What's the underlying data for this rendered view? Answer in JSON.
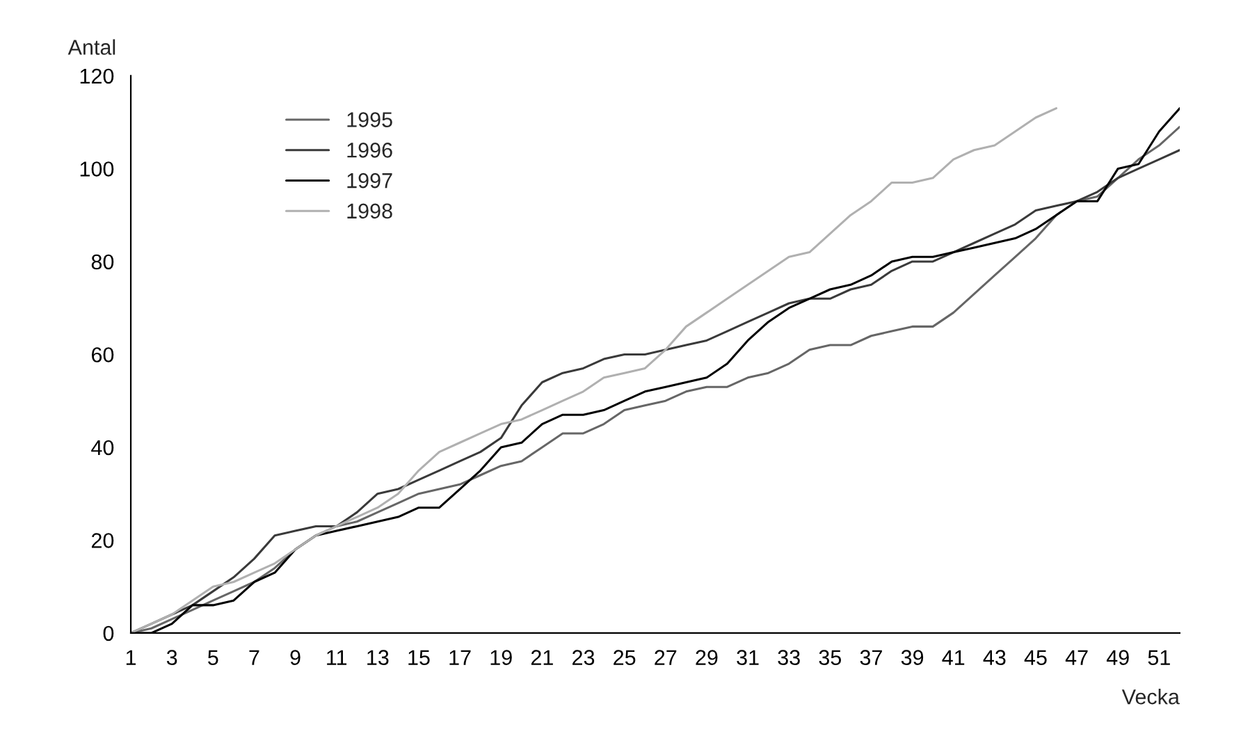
{
  "chart_data": {
    "type": "line",
    "xlabel": "Vecka",
    "ylabel": "Antal",
    "x": [
      1,
      2,
      3,
      4,
      5,
      6,
      7,
      8,
      9,
      10,
      11,
      12,
      13,
      14,
      15,
      16,
      17,
      18,
      19,
      20,
      21,
      22,
      23,
      24,
      25,
      26,
      27,
      28,
      29,
      30,
      31,
      32,
      33,
      34,
      35,
      36,
      37,
      38,
      39,
      40,
      41,
      42,
      43,
      44,
      45,
      46,
      47,
      48,
      49,
      50,
      51,
      52
    ],
    "series": [
      {
        "name": "1995",
        "color": "#666666",
        "values": [
          0,
          1,
          3,
          5,
          7,
          9,
          11,
          14,
          18,
          21,
          23,
          24,
          26,
          28,
          30,
          31,
          32,
          34,
          36,
          37,
          40,
          43,
          43,
          45,
          48,
          49,
          50,
          52,
          53,
          53,
          55,
          56,
          58,
          61,
          62,
          62,
          64,
          65,
          66,
          66,
          69,
          73,
          77,
          81,
          85,
          90,
          93,
          94,
          98,
          102,
          105,
          109
        ]
      },
      {
        "name": "1996",
        "color": "#3a3a3a",
        "values": [
          0,
          2,
          4,
          6,
          9,
          12,
          16,
          21,
          22,
          23,
          23,
          26,
          30,
          31,
          33,
          35,
          37,
          39,
          42,
          49,
          54,
          56,
          57,
          59,
          60,
          60,
          61,
          62,
          63,
          65,
          67,
          69,
          71,
          72,
          72,
          74,
          75,
          78,
          80,
          80,
          82,
          84,
          86,
          88,
          91,
          92,
          93,
          95,
          98,
          100,
          102,
          104
        ]
      },
      {
        "name": "1997",
        "color": "#000000",
        "values": [
          0,
          0,
          2,
          6,
          6,
          7,
          11,
          13,
          18,
          21,
          22,
          23,
          24,
          25,
          27,
          27,
          31,
          35,
          40,
          41,
          45,
          47,
          47,
          48,
          50,
          52,
          53,
          54,
          55,
          58,
          63,
          67,
          70,
          72,
          74,
          75,
          77,
          80,
          81,
          81,
          82,
          83,
          84,
          85,
          87,
          90,
          93,
          93,
          100,
          101,
          108,
          113
        ]
      },
      {
        "name": "1998",
        "color": "#b0b0b0",
        "values": [
          0,
          2,
          4,
          7,
          10,
          11,
          13,
          15,
          18,
          21,
          23,
          25,
          27,
          30,
          35,
          39,
          41,
          43,
          45,
          46,
          48,
          50,
          52,
          55,
          56,
          57,
          61,
          66,
          69,
          72,
          75,
          78,
          81,
          82,
          86,
          90,
          93,
          97,
          97,
          98,
          102,
          104,
          105,
          108,
          111,
          113,
          null,
          null,
          null,
          null,
          null,
          null
        ]
      }
    ],
    "xlim": [
      1,
      52
    ],
    "xticks": [
      1,
      3,
      5,
      7,
      9,
      11,
      13,
      15,
      17,
      19,
      21,
      23,
      25,
      27,
      29,
      31,
      33,
      35,
      37,
      39,
      41,
      43,
      45,
      47,
      49,
      51
    ],
    "ylim": [
      0,
      120
    ],
    "yticks": [
      0,
      20,
      40,
      60,
      80,
      100,
      120
    ],
    "legend": "top left",
    "grid": false,
    "marker": "none",
    "line_style": "solid"
  }
}
